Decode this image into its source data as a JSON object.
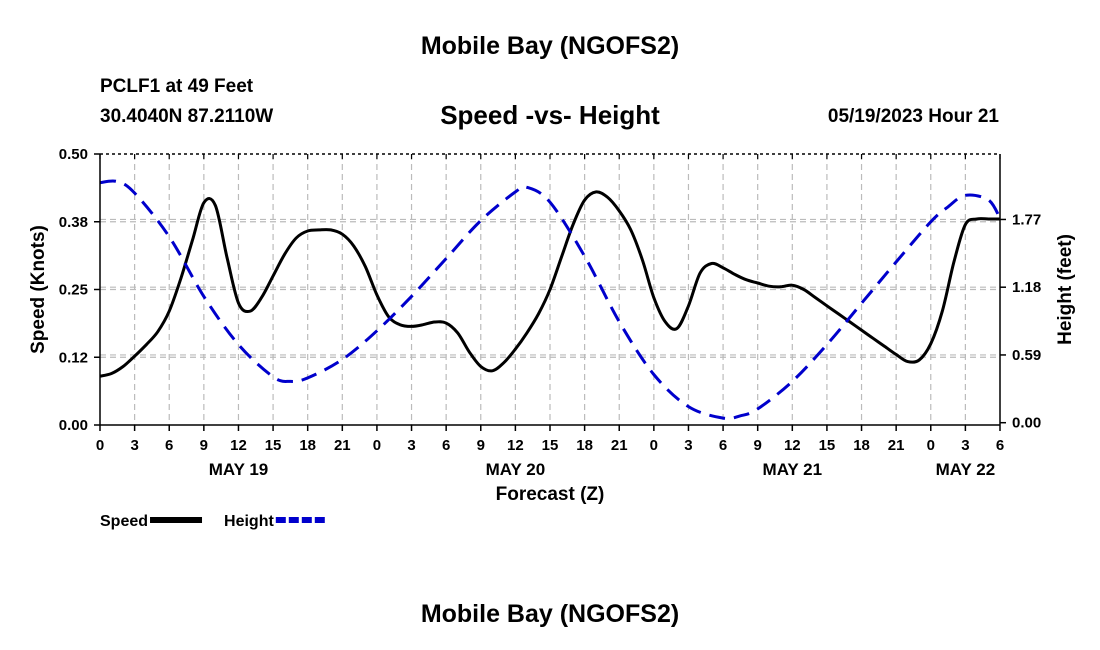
{
  "header": {
    "title": "Mobile Bay (NGOFS2)",
    "station": "PCLF1 at 49 Feet",
    "coords": "30.4040N  87.2110W",
    "subtitle": "Speed -vs- Height",
    "datetime": "05/19/2023 Hour 21"
  },
  "footer": {
    "title": "Mobile Bay (NGOFS2)"
  },
  "chart_data": {
    "type": "line",
    "xlabel": "Forecast (Z)",
    "ylabel": "Speed (Knots)",
    "y2label": "Height (feet)",
    "x_range_hours": [
      0,
      78
    ],
    "x_tick_step_hours": 3,
    "x_tick_labels": [
      "0",
      "3",
      "6",
      "9",
      "12",
      "15",
      "18",
      "21",
      "0",
      "3",
      "6",
      "9",
      "12",
      "15",
      "18",
      "21",
      "0",
      "3",
      "6",
      "9",
      "12",
      "15",
      "18",
      "21",
      "0",
      "3",
      "6"
    ],
    "day_labels": [
      {
        "label": "MAY 19",
        "hour": 12
      },
      {
        "label": "MAY 20",
        "hour": 36
      },
      {
        "label": "MAY 21",
        "hour": 60
      },
      {
        "label": "MAY 22",
        "hour": 75
      }
    ],
    "ylim": [
      0,
      0.5
    ],
    "y_ticks": [
      0.0,
      0.125,
      0.25,
      0.375,
      0.5
    ],
    "y_tick_labels": [
      "0.00",
      "0.12",
      "0.25",
      "0.38",
      "0.50"
    ],
    "y2lim": [
      -0.02,
      2.34
    ],
    "y2_ticks": [
      0.0,
      0.59,
      1.18,
      1.77
    ],
    "y2_tick_labels": [
      "0.00",
      "0.59",
      "1.18",
      "1.77"
    ],
    "series": [
      {
        "name": "Speed",
        "axis": "left",
        "color": "#000000",
        "dash": "solid",
        "x": [
          0,
          1,
          2,
          3,
          4,
          5,
          6,
          7,
          8,
          9,
          10,
          11,
          12,
          13,
          14,
          15,
          16,
          17,
          18,
          19,
          20,
          21,
          22,
          23,
          24,
          25,
          26,
          27,
          28,
          29,
          30,
          31,
          32,
          33,
          34,
          35,
          36,
          37,
          38,
          39,
          40,
          41,
          42,
          43,
          44,
          45,
          46,
          47,
          48,
          49,
          50,
          51,
          52,
          53,
          54,
          55,
          56,
          57,
          58,
          59,
          60,
          61,
          62,
          63,
          64,
          65,
          66,
          67,
          68,
          69,
          70,
          71,
          72,
          73,
          74,
          75,
          76,
          77,
          78
        ],
        "values": [
          0.09,
          0.095,
          0.108,
          0.127,
          0.148,
          0.172,
          0.21,
          0.27,
          0.34,
          0.41,
          0.405,
          0.31,
          0.225,
          0.21,
          0.235,
          0.275,
          0.315,
          0.345,
          0.358,
          0.36,
          0.36,
          0.352,
          0.33,
          0.292,
          0.24,
          0.2,
          0.185,
          0.182,
          0.185,
          0.19,
          0.188,
          0.17,
          0.135,
          0.108,
          0.1,
          0.115,
          0.14,
          0.17,
          0.205,
          0.25,
          0.31,
          0.37,
          0.415,
          0.43,
          0.42,
          0.395,
          0.36,
          0.305,
          0.235,
          0.19,
          0.178,
          0.22,
          0.28,
          0.298,
          0.29,
          0.278,
          0.268,
          0.262,
          0.256,
          0.255,
          0.258,
          0.25,
          0.235,
          0.22,
          0.205,
          0.19,
          0.175,
          0.16,
          0.145,
          0.13,
          0.117,
          0.12,
          0.15,
          0.21,
          0.3,
          0.37,
          0.38,
          0.38,
          0.38
        ]
      },
      {
        "name": "Height",
        "axis": "right",
        "color": "#0000cc",
        "dash": "dashed",
        "x": [
          0,
          1.5,
          3,
          6,
          9,
          12,
          15,
          16.5,
          18,
          21,
          24,
          27,
          30,
          33,
          36,
          37,
          39,
          42,
          45,
          48,
          51,
          54,
          55.5,
          57,
          60,
          63,
          66,
          69,
          72,
          73.5,
          75,
          77,
          78
        ],
        "values": [
          2.09,
          2.1,
          2.0,
          1.62,
          1.1,
          0.68,
          0.4,
          0.36,
          0.39,
          0.55,
          0.8,
          1.1,
          1.43,
          1.76,
          2.01,
          2.05,
          1.92,
          1.45,
          0.88,
          0.42,
          0.14,
          0.04,
          0.06,
          0.12,
          0.36,
          0.68,
          1.04,
          1.4,
          1.75,
          1.88,
          1.98,
          1.94,
          1.78
        ]
      }
    ],
    "legend": [
      {
        "label": "Speed",
        "series": "Speed"
      },
      {
        "label": "Height",
        "series": "Height"
      }
    ],
    "grid": true
  }
}
